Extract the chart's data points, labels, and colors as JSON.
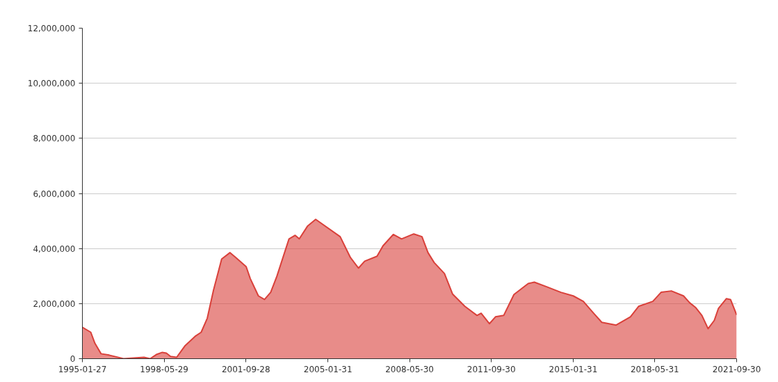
{
  "chart_data": {
    "type": "area",
    "x": [
      "1995-01-27",
      "1995-06",
      "1995-08",
      "1995-11",
      "1996-03",
      "1996-10",
      "1997-08",
      "1997-11",
      "1998-02",
      "1998-05",
      "1998-07",
      "1998-09",
      "1998-12",
      "1999-04",
      "1999-09",
      "1999-12",
      "2000-03",
      "2000-06",
      "2000-10",
      "2001-02",
      "2001-05",
      "2001-10",
      "2001-12",
      "2002-04",
      "2002-07",
      "2002-10",
      "2003-01",
      "2003-07",
      "2003-10",
      "2003-12",
      "2004-04",
      "2004-08",
      "2005-08",
      "2006-01",
      "2006-05",
      "2006-08",
      "2007-02",
      "2007-05",
      "2007-10",
      "2008-02",
      "2008-08",
      "2008-12",
      "2009-03",
      "2009-06",
      "2009-11",
      "2010-03",
      "2010-09",
      "2011-03",
      "2011-05",
      "2011-09",
      "2011-12",
      "2012-04",
      "2012-09",
      "2013-04",
      "2013-07",
      "2014-01",
      "2014-08",
      "2015-02",
      "2015-07",
      "2015-12",
      "2016-04",
      "2016-11",
      "2017-06",
      "2017-10",
      "2018-05",
      "2018-09",
      "2019-02",
      "2019-08",
      "2019-11",
      "2020-02",
      "2020-05",
      "2020-08",
      "2020-11",
      "2021-01",
      "2021-05",
      "2021-07",
      "2021-09-30"
    ],
    "series": [
      {
        "color": "#d9403a",
        "values": [
          1140000,
          960000,
          560000,
          180000,
          130000,
          0,
          50000,
          0,
          150000,
          230000,
          200000,
          80000,
          50000,
          460000,
          810000,
          960000,
          1470000,
          2480000,
          3620000,
          3850000,
          3670000,
          3340000,
          2910000,
          2280000,
          2150000,
          2410000,
          2990000,
          4350000,
          4480000,
          4350000,
          4810000,
          5060000,
          4430000,
          3670000,
          3290000,
          3540000,
          3720000,
          4100000,
          4510000,
          4350000,
          4530000,
          4430000,
          3850000,
          3490000,
          3090000,
          2350000,
          1900000,
          1570000,
          1650000,
          1270000,
          1520000,
          1570000,
          2330000,
          2730000,
          2780000,
          2610000,
          2410000,
          2280000,
          2080000,
          1650000,
          1320000,
          1220000,
          1520000,
          1900000,
          2080000,
          2410000,
          2460000,
          2280000,
          2030000,
          1850000,
          1570000,
          1090000,
          1390000,
          1820000,
          2180000,
          2150000,
          1590000
        ]
      }
    ],
    "xlim": [
      "1995-01-27",
      "2021-09-30"
    ],
    "xticks": [
      "1995-01-27",
      "1998-05-29",
      "2001-09-28",
      "2005-01-31",
      "2008-05-30",
      "2011-09-30",
      "2015-01-31",
      "2018-05-31",
      "2021-09-30"
    ],
    "ylim": [
      0,
      12000000
    ],
    "yticks": [
      {
        "value": 0,
        "label": "0"
      },
      {
        "value": 2000000,
        "label": "2,000,000"
      },
      {
        "value": 4000000,
        "label": "4,000,000"
      },
      {
        "value": 6000000,
        "label": "6,000,000"
      },
      {
        "value": 8000000,
        "label": "8,000,000"
      },
      {
        "value": 10000000,
        "label": "10,000,000"
      },
      {
        "value": 12000000,
        "label": "12,000,000"
      }
    ],
    "grid": "y"
  }
}
